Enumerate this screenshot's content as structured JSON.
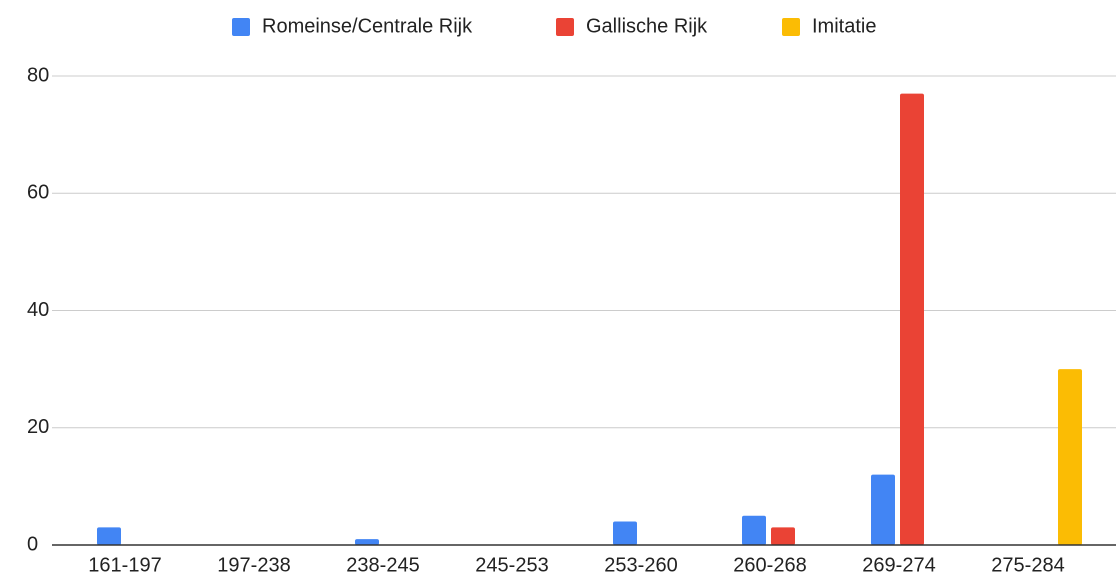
{
  "chart_data": {
    "type": "bar",
    "categories": [
      "161-197",
      "197-238",
      "238-245",
      "245-253",
      "253-260",
      "260-268",
      "269-274",
      "275-284"
    ],
    "series": [
      {
        "name": "Romeinse/Centrale Rijk",
        "color": "#4285f4",
        "values": [
          3,
          0,
          1,
          0,
          4,
          5,
          12,
          0
        ]
      },
      {
        "name": "Gallische Rijk",
        "color": "#ea4335",
        "values": [
          0,
          0,
          0,
          0,
          0,
          3,
          77,
          0
        ]
      },
      {
        "name": "Imitatie",
        "color": "#fbbc04",
        "values": [
          0,
          0,
          0,
          0,
          0,
          0,
          0,
          30
        ]
      }
    ],
    "ylim": [
      0,
      80
    ],
    "yticks": [
      0,
      20,
      40,
      60,
      80
    ],
    "grid": true,
    "legend": "top"
  }
}
